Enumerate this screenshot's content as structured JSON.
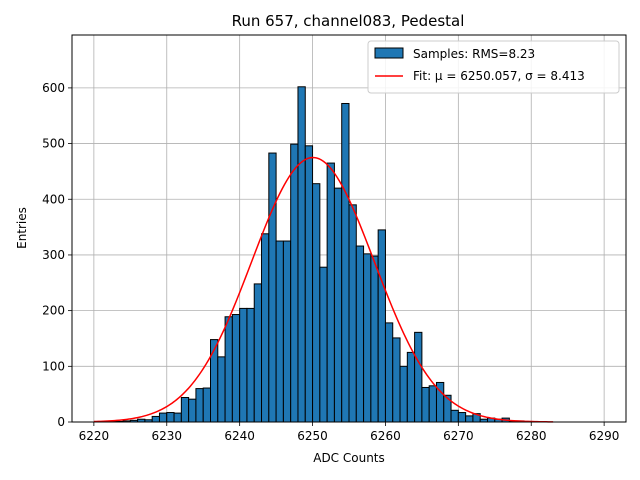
{
  "chart_data": {
    "type": "bar",
    "title": "Run 657, channel083, Pedestal",
    "xlabel": "ADC Counts",
    "ylabel": "Entries",
    "xlim": [
      6217,
      6293
    ],
    "ylim": [
      0,
      695
    ],
    "xticks": [
      6220,
      6230,
      6240,
      6250,
      6260,
      6270,
      6280,
      6290
    ],
    "yticks": [
      0,
      100,
      200,
      300,
      400,
      500,
      600
    ],
    "grid": true,
    "legend_position": "top-right",
    "bin_width": 1,
    "bin_starts": [
      6220,
      6221,
      6222,
      6223,
      6224,
      6225,
      6226,
      6227,
      6228,
      6229,
      6230,
      6231,
      6232,
      6233,
      6234,
      6235,
      6236,
      6237,
      6238,
      6239,
      6240,
      6241,
      6242,
      6243,
      6244,
      6245,
      6246,
      6247,
      6248,
      6249,
      6250,
      6251,
      6252,
      6253,
      6254,
      6255,
      6256,
      6257,
      6258,
      6259,
      6260,
      6261,
      6262,
      6263,
      6264,
      6265,
      6266,
      6267,
      6268,
      6269,
      6270,
      6271,
      6272,
      6273,
      6274,
      6275,
      6276,
      6277,
      6278,
      6279,
      6280,
      6281,
      6282
    ],
    "series": [
      {
        "name": "Samples: RMS=8.23",
        "kind": "histogram",
        "color": "#1f77b4",
        "edgecolor": "#000000",
        "values": [
          0,
          0,
          1,
          1,
          2,
          3,
          5,
          4,
          10,
          16,
          17,
          16,
          44,
          41,
          60,
          61,
          148,
          117,
          189,
          193,
          204,
          204,
          248,
          338,
          483,
          325,
          325,
          499,
          602,
          496,
          428,
          278,
          465,
          420,
          572,
          390,
          316,
          302,
          298,
          345,
          178,
          151,
          100,
          125,
          161,
          62,
          65,
          71,
          48,
          21,
          17,
          11,
          15,
          5,
          7,
          5,
          7,
          1,
          2,
          1,
          0,
          0,
          0
        ]
      },
      {
        "name": "Fit: μ = 6250.057, σ = 8.413",
        "kind": "gaussian-fit",
        "color": "#ff0000",
        "mu": 6250.057,
        "sigma": 8.413,
        "peak": 475,
        "x_range": [
          6220,
          6283
        ]
      }
    ]
  }
}
